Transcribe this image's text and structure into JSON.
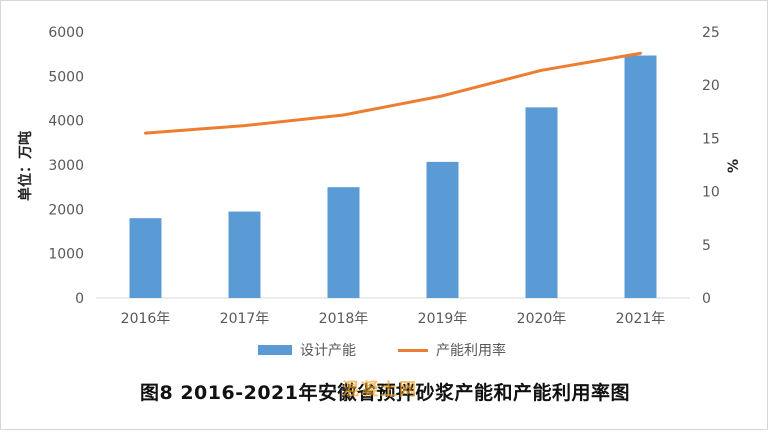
{
  "chart_data": {
    "type": "bar",
    "categories": [
      "2016年",
      "2017年",
      "2018年",
      "2019年",
      "2020年",
      "2021年"
    ],
    "series": [
      {
        "name": "设计产能",
        "type": "bar",
        "axis": "left",
        "values": [
          1800,
          1950,
          2500,
          3070,
          4300,
          5470
        ],
        "color": "#5b9bd5"
      },
      {
        "name": "产能利用率",
        "type": "line",
        "axis": "right",
        "values": [
          15.5,
          16.2,
          17.2,
          19.0,
          21.4,
          23.0
        ],
        "color": "#ed7d31"
      }
    ],
    "ylim": [
      0,
      6000
    ],
    "y_ticks": [
      0,
      1000,
      2000,
      3000,
      4000,
      5000,
      6000
    ],
    "y2lim": [
      0,
      25
    ],
    "y2_ticks": [
      0,
      5,
      10,
      15,
      20,
      25
    ],
    "ylabel": "单位：万吨",
    "y2label": "%",
    "legend_position": "bottom",
    "grid": false
  },
  "caption": "图8   2016-2021年安徽省预拌砂浆产能和产能利用率图",
  "watermark": "混凝土网"
}
